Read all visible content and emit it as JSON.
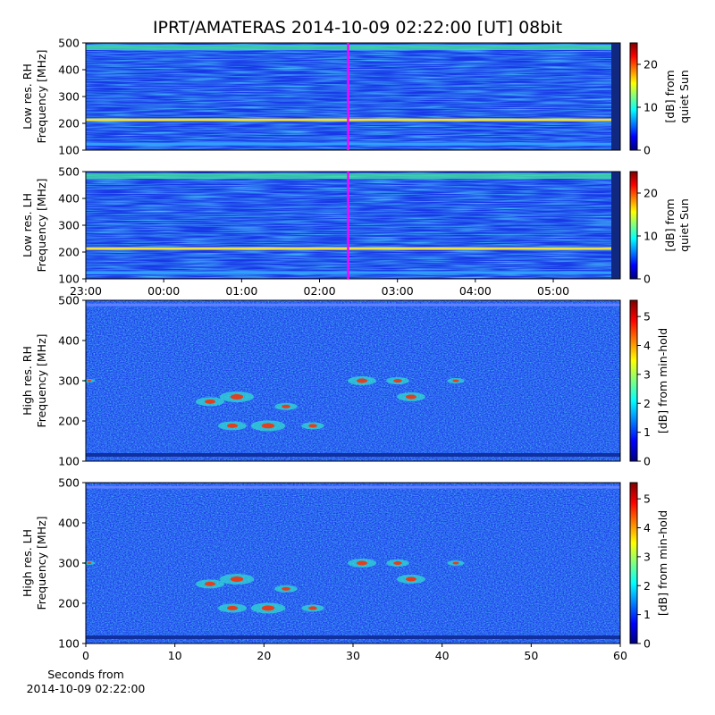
{
  "chart_data": [
    {
      "type": "heatmap",
      "title": "IPRT/AMATERAS 2014-10-09 02:22:00 [UT]   08bit",
      "ylabel": [
        "Low res. RH",
        "Frequency [MHz]"
      ],
      "ylim": [
        100,
        500
      ],
      "yticks": [
        100,
        200,
        300,
        400,
        500
      ],
      "xlim": [
        0,
        6.86
      ],
      "marker": {
        "x": 3.367,
        "color": "#ff00ff"
      },
      "colorbar": {
        "label": [
          "[dB] from",
          "quiet Sun"
        ],
        "lim": [
          0,
          25
        ],
        "ticks": [
          0,
          10,
          20
        ]
      }
    },
    {
      "type": "heatmap",
      "ylabel": [
        "Low res. LH",
        "Frequency [MHz]"
      ],
      "ylim": [
        100,
        500
      ],
      "yticks": [
        100,
        200,
        300,
        400,
        500
      ],
      "xlim": [
        0,
        6.86
      ],
      "xticks": [
        {
          "value": 0,
          "label": "23:00"
        },
        {
          "value": 1,
          "label": "00:00"
        },
        {
          "value": 2,
          "label": "01:00"
        },
        {
          "value": 3,
          "label": "02:00"
        },
        {
          "value": 4,
          "label": "03:00"
        },
        {
          "value": 5,
          "label": "04:00"
        },
        {
          "value": 6,
          "label": "05:00"
        }
      ],
      "marker": {
        "x": 3.367,
        "color": "#ff00ff"
      },
      "colorbar": {
        "label": [
          "[dB] from",
          "quiet Sun"
        ],
        "lim": [
          0,
          25
        ],
        "ticks": [
          0,
          10,
          20
        ]
      }
    },
    {
      "type": "heatmap",
      "ylabel": [
        "High res. RH",
        "Frequency [MHz]"
      ],
      "ylim": [
        100,
        500
      ],
      "yticks": [
        100,
        200,
        300,
        400,
        500
      ],
      "xlim": [
        0,
        60
      ],
      "colorbar": {
        "label": [
          "[dB] from min-hold"
        ],
        "lim": [
          0,
          5.56
        ],
        "ticks": [
          0,
          1,
          2,
          3,
          4,
          5
        ]
      }
    },
    {
      "type": "heatmap",
      "ylabel": [
        "High res. LH",
        "Frequency [MHz]"
      ],
      "ylim": [
        100,
        500
      ],
      "yticks": [
        100,
        200,
        300,
        400,
        500
      ],
      "xlim": [
        0,
        60
      ],
      "xticks": [
        0,
        10,
        20,
        30,
        40,
        50,
        60
      ],
      "xlabel": [
        "Seconds from",
        "2014-10-09 02:22:00"
      ],
      "colorbar": {
        "label": [
          "[dB] from min-hold"
        ],
        "lim": [
          0,
          5.56
        ],
        "ticks": [
          0,
          1,
          2,
          3,
          4,
          5
        ]
      }
    }
  ]
}
